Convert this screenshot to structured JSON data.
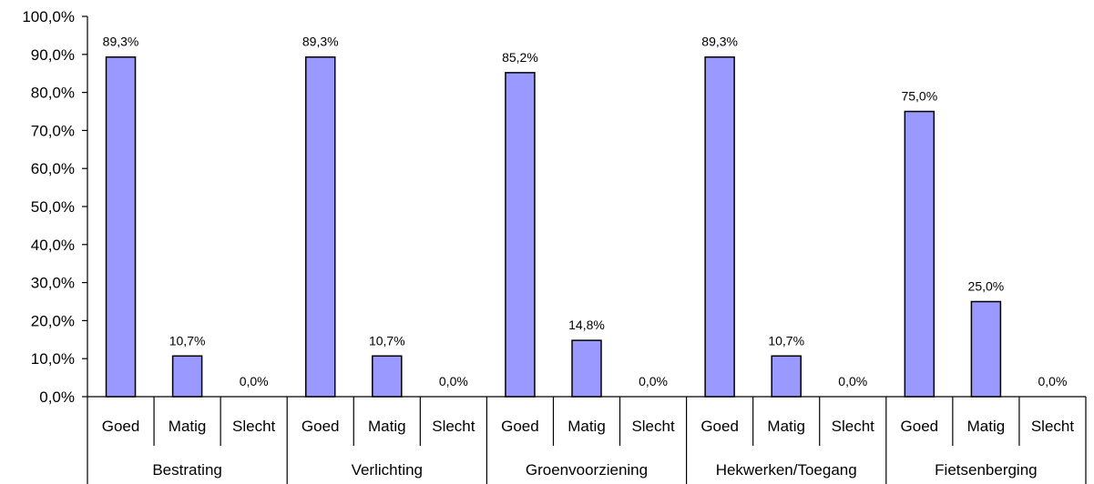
{
  "chart_data": {
    "type": "bar",
    "y_ticks": [
      "0,0%",
      "10,0%",
      "20,0%",
      "30,0%",
      "40,0%",
      "50,0%",
      "60,0%",
      "70,0%",
      "80,0%",
      "90,0%",
      "100,0%"
    ],
    "ylim": [
      0,
      100
    ],
    "grid": false,
    "bar_color": "#9999ff",
    "bar_edge_color": "#000000",
    "groups": [
      {
        "name": "Bestrating",
        "categories": [
          "Goed",
          "Matig",
          "Slecht"
        ],
        "values": [
          89.3,
          10.7,
          0.0
        ],
        "labels": [
          "89,3%",
          "10,7%",
          "0,0%"
        ]
      },
      {
        "name": "Verlichting",
        "categories": [
          "Goed",
          "Matig",
          "Slecht"
        ],
        "values": [
          89.3,
          10.7,
          0.0
        ],
        "labels": [
          "89,3%",
          "10,7%",
          "0,0%"
        ]
      },
      {
        "name": "Groenvoorziening",
        "categories": [
          "Goed",
          "Matig",
          "Slecht"
        ],
        "values": [
          85.2,
          14.8,
          0.0
        ],
        "labels": [
          "85,2%",
          "14,8%",
          "0,0%"
        ]
      },
      {
        "name": "Hekwerken/Toegang",
        "categories": [
          "Goed",
          "Matig",
          "Slecht"
        ],
        "values": [
          89.3,
          10.7,
          0.0
        ],
        "labels": [
          "89,3%",
          "10,7%",
          "0,0%"
        ]
      },
      {
        "name": "Fietsenberging",
        "categories": [
          "Goed",
          "Matig",
          "Slecht"
        ],
        "values": [
          75.0,
          25.0,
          0.0
        ],
        "labels": [
          "75,0%",
          "25,0%",
          "0,0%"
        ]
      }
    ]
  }
}
